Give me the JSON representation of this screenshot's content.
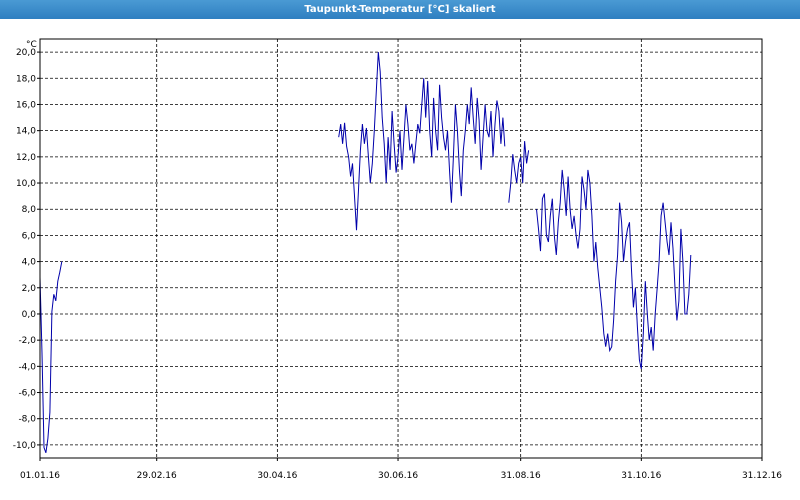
{
  "window": {
    "title": "Taupunkt-Temperatur [°C] skaliert"
  },
  "chart_data": {
    "type": "line",
    "title": "Taupunkt-Temperatur [°C] skaliert",
    "y_unit": "°C",
    "xlabel": "",
    "ylabel": "",
    "ylim": [
      -11,
      21
    ],
    "xlim": [
      "2016-01-01",
      "2016-12-31"
    ],
    "y_ticks": [
      "20,0",
      "18,0",
      "16,0",
      "14,0",
      "12,0",
      "10,0",
      "8,0",
      "6,0",
      "4,0",
      "2,0",
      "0,0",
      "-2,0",
      "-4,0",
      "-6,0",
      "-8,0",
      "-10,0"
    ],
    "x_ticks": [
      "01.01.16",
      "29.02.16",
      "30.04.16",
      "30.06.16",
      "31.08.16",
      "31.10.16",
      "31.12.16"
    ],
    "grid": true,
    "line_color": "#0000aa",
    "series": [
      {
        "segments": [
          [
            [
              "2016-01-01",
              2.8
            ],
            [
              "2016-01-02",
              -3.0
            ],
            [
              "2016-01-03",
              -10.2
            ],
            [
              "2016-01-04",
              -10.6
            ],
            [
              "2016-01-05",
              -9.5
            ],
            [
              "2016-01-06",
              -7.5
            ],
            [
              "2016-01-07",
              0.2
            ],
            [
              "2016-01-08",
              1.5
            ],
            [
              "2016-01-09",
              1.0
            ],
            [
              "2016-01-10",
              2.5
            ],
            [
              "2016-01-11",
              3.2
            ],
            [
              "2016-01-12",
              4.0
            ]
          ],
          [
            [
              "2016-05-31",
              13.5
            ],
            [
              "2016-06-01",
              14.5
            ],
            [
              "2016-06-02",
              13.0
            ],
            [
              "2016-06-03",
              14.6
            ],
            [
              "2016-06-04",
              12.8
            ],
            [
              "2016-06-05",
              12.0
            ],
            [
              "2016-06-06",
              10.5
            ],
            [
              "2016-06-07",
              11.5
            ],
            [
              "2016-06-08",
              9.0
            ],
            [
              "2016-06-09",
              6.4
            ],
            [
              "2016-06-10",
              9.5
            ],
            [
              "2016-06-11",
              12.5
            ],
            [
              "2016-06-12",
              14.5
            ],
            [
              "2016-06-13",
              13.0
            ],
            [
              "2016-06-14",
              14.2
            ],
            [
              "2016-06-15",
              12.0
            ],
            [
              "2016-06-16",
              10.0
            ],
            [
              "2016-06-17",
              11.5
            ],
            [
              "2016-06-18",
              14.0
            ],
            [
              "2016-06-19",
              17.0
            ],
            [
              "2016-06-20",
              20.0
            ],
            [
              "2016-06-21",
              18.5
            ],
            [
              "2016-06-22",
              15.0
            ],
            [
              "2016-06-23",
              13.0
            ],
            [
              "2016-06-24",
              10.0
            ],
            [
              "2016-06-25",
              13.5
            ],
            [
              "2016-06-26",
              11.0
            ],
            [
              "2016-06-27",
              15.5
            ],
            [
              "2016-06-28",
              13.0
            ],
            [
              "2016-06-29",
              10.8
            ],
            [
              "2016-06-30",
              12.0
            ],
            [
              "2016-07-01",
              14.0
            ],
            [
              "2016-07-02",
              11.0
            ],
            [
              "2016-07-03",
              13.5
            ],
            [
              "2016-07-04",
              16.0
            ],
            [
              "2016-07-05",
              14.5
            ],
            [
              "2016-07-06",
              12.5
            ],
            [
              "2016-07-07",
              13.0
            ],
            [
              "2016-07-08",
              11.5
            ],
            [
              "2016-07-09",
              13.0
            ],
            [
              "2016-07-10",
              14.5
            ],
            [
              "2016-07-11",
              13.8
            ],
            [
              "2016-07-12",
              16.0
            ],
            [
              "2016-07-13",
              18.0
            ],
            [
              "2016-07-14",
              15.0
            ],
            [
              "2016-07-15",
              17.8
            ],
            [
              "2016-07-16",
              14.0
            ],
            [
              "2016-07-17",
              12.0
            ],
            [
              "2016-07-18",
              16.5
            ],
            [
              "2016-07-19",
              14.0
            ],
            [
              "2016-07-20",
              12.5
            ],
            [
              "2016-07-21",
              17.5
            ],
            [
              "2016-07-22",
              15.0
            ],
            [
              "2016-07-23",
              13.5
            ],
            [
              "2016-07-24",
              12.5
            ],
            [
              "2016-07-25",
              14.0
            ],
            [
              "2016-07-26",
              11.0
            ],
            [
              "2016-07-27",
              8.5
            ],
            [
              "2016-07-28",
              12.0
            ],
            [
              "2016-07-29",
              16.0
            ],
            [
              "2016-07-30",
              14.0
            ],
            [
              "2016-07-31",
              11.0
            ],
            [
              "2016-08-01",
              9.0
            ],
            [
              "2016-08-02",
              12.5
            ],
            [
              "2016-08-03",
              14.0
            ],
            [
              "2016-08-04",
              16.0
            ],
            [
              "2016-08-05",
              14.5
            ],
            [
              "2016-08-06",
              17.3
            ],
            [
              "2016-08-07",
              15.0
            ],
            [
              "2016-08-08",
              13.0
            ],
            [
              "2016-08-09",
              16.5
            ],
            [
              "2016-08-10",
              14.8
            ],
            [
              "2016-08-11",
              11.0
            ],
            [
              "2016-08-12",
              13.5
            ],
            [
              "2016-08-13",
              16.0
            ],
            [
              "2016-08-14",
              14.0
            ],
            [
              "2016-08-15",
              13.5
            ],
            [
              "2016-08-16",
              15.5
            ],
            [
              "2016-08-17",
              12.0
            ],
            [
              "2016-08-18",
              14.5
            ],
            [
              "2016-08-19",
              16.3
            ],
            [
              "2016-08-20",
              15.5
            ],
            [
              "2016-08-21",
              13.0
            ],
            [
              "2016-08-22",
              15.0
            ],
            [
              "2016-08-23",
              12.8
            ]
          ],
          [
            [
              "2016-08-25",
              8.5
            ],
            [
              "2016-08-26",
              10.0
            ],
            [
              "2016-08-27",
              12.2
            ],
            [
              "2016-08-28",
              11.0
            ],
            [
              "2016-08-29",
              10.0
            ],
            [
              "2016-08-30",
              11.5
            ],
            [
              "2016-08-31",
              12.0
            ],
            [
              "2016-09-01",
              10.0
            ],
            [
              "2016-09-02",
              13.2
            ],
            [
              "2016-09-03",
              11.5
            ],
            [
              "2016-09-04",
              12.5
            ]
          ],
          [
            [
              "2016-09-08",
              8.0
            ],
            [
              "2016-09-09",
              6.5
            ],
            [
              "2016-09-10",
              4.8
            ],
            [
              "2016-09-11",
              8.8
            ],
            [
              "2016-09-12",
              9.2
            ],
            [
              "2016-09-13",
              6.0
            ],
            [
              "2016-09-14",
              5.5
            ],
            [
              "2016-09-15",
              7.5
            ],
            [
              "2016-09-16",
              8.8
            ],
            [
              "2016-09-17",
              6.0
            ],
            [
              "2016-09-18",
              4.5
            ],
            [
              "2016-09-19",
              7.0
            ],
            [
              "2016-09-20",
              8.5
            ],
            [
              "2016-09-21",
              11.0
            ],
            [
              "2016-09-22",
              9.5
            ],
            [
              "2016-09-23",
              7.5
            ],
            [
              "2016-09-24",
              10.5
            ],
            [
              "2016-09-25",
              8.0
            ],
            [
              "2016-09-26",
              6.5
            ],
            [
              "2016-09-27",
              7.5
            ],
            [
              "2016-09-28",
              6.0
            ],
            [
              "2016-09-29",
              5.0
            ],
            [
              "2016-09-30",
              6.5
            ],
            [
              "2016-10-01",
              10.5
            ],
            [
              "2016-10-02",
              9.5
            ],
            [
              "2016-10-03",
              8.0
            ],
            [
              "2016-10-04",
              11.0
            ],
            [
              "2016-10-05",
              10.0
            ],
            [
              "2016-10-06",
              7.5
            ],
            [
              "2016-10-07",
              4.0
            ],
            [
              "2016-10-08",
              5.5
            ],
            [
              "2016-10-09",
              3.5
            ],
            [
              "2016-10-10",
              2.0
            ],
            [
              "2016-10-11",
              0.5
            ],
            [
              "2016-10-12",
              -1.5
            ],
            [
              "2016-10-13",
              -2.5
            ],
            [
              "2016-10-14",
              -1.5
            ],
            [
              "2016-10-15",
              -2.8
            ],
            [
              "2016-10-16",
              -2.5
            ],
            [
              "2016-10-17",
              -0.5
            ],
            [
              "2016-10-18",
              2.5
            ],
            [
              "2016-10-19",
              4.5
            ],
            [
              "2016-10-20",
              8.5
            ],
            [
              "2016-10-21",
              7.0
            ],
            [
              "2016-10-22",
              4.0
            ],
            [
              "2016-10-23",
              5.5
            ],
            [
              "2016-10-24",
              6.5
            ],
            [
              "2016-10-25",
              7.0
            ],
            [
              "2016-10-26",
              3.5
            ],
            [
              "2016-10-27",
              0.5
            ],
            [
              "2016-10-28",
              2.0
            ],
            [
              "2016-10-29",
              -1.0
            ],
            [
              "2016-10-30",
              -3.5
            ],
            [
              "2016-10-31",
              -4.2
            ],
            [
              "2016-11-01",
              -1.5
            ],
            [
              "2016-11-02",
              2.5
            ],
            [
              "2016-11-03",
              0.0
            ],
            [
              "2016-11-04",
              -2.0
            ],
            [
              "2016-11-05",
              -1.0
            ],
            [
              "2016-11-06",
              -2.8
            ],
            [
              "2016-11-07",
              0.0
            ],
            [
              "2016-11-08",
              2.0
            ],
            [
              "2016-11-09",
              4.0
            ],
            [
              "2016-11-10",
              7.5
            ],
            [
              "2016-11-11",
              8.5
            ],
            [
              "2016-11-12",
              7.0
            ],
            [
              "2016-11-13",
              5.5
            ],
            [
              "2016-11-14",
              4.5
            ],
            [
              "2016-11-15",
              7.0
            ],
            [
              "2016-11-16",
              5.0
            ],
            [
              "2016-11-17",
              2.0
            ],
            [
              "2016-11-18",
              -0.5
            ],
            [
              "2016-11-19",
              1.0
            ],
            [
              "2016-11-20",
              6.5
            ],
            [
              "2016-11-21",
              4.0
            ],
            [
              "2016-11-22",
              0.0
            ],
            [
              "2016-11-23",
              0.0
            ],
            [
              "2016-11-24",
              1.5
            ],
            [
              "2016-11-25",
              4.5
            ]
          ]
        ]
      }
    ]
  }
}
